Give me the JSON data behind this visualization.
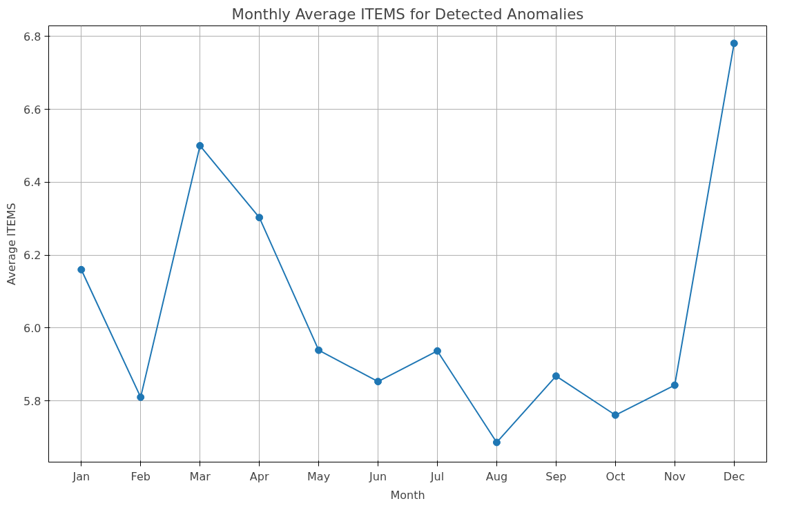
{
  "chart_data": {
    "type": "line",
    "title": "Monthly Average ITEMS for Detected Anomalies",
    "xlabel": "Month",
    "ylabel": "Average ITEMS",
    "categories": [
      "Jan",
      "Feb",
      "Mar",
      "Apr",
      "May",
      "Jun",
      "Jul",
      "Aug",
      "Sep",
      "Oct",
      "Nov",
      "Dec"
    ],
    "series": [
      {
        "color": "#1f77b4",
        "values": [
          6.16,
          5.81,
          6.5,
          6.303,
          5.939,
          5.853,
          5.937,
          5.686,
          5.868,
          5.761,
          5.843,
          6.781
        ]
      }
    ],
    "ylim": [
      5.632,
      6.829
    ],
    "yticks": [
      5.8,
      {
        "value": 6.0,
        "label": "6.0"
      },
      6.2,
      6.4,
      6.6,
      6.8
    ],
    "grid": true,
    "marker": "circle",
    "line_style": "solid"
  }
}
